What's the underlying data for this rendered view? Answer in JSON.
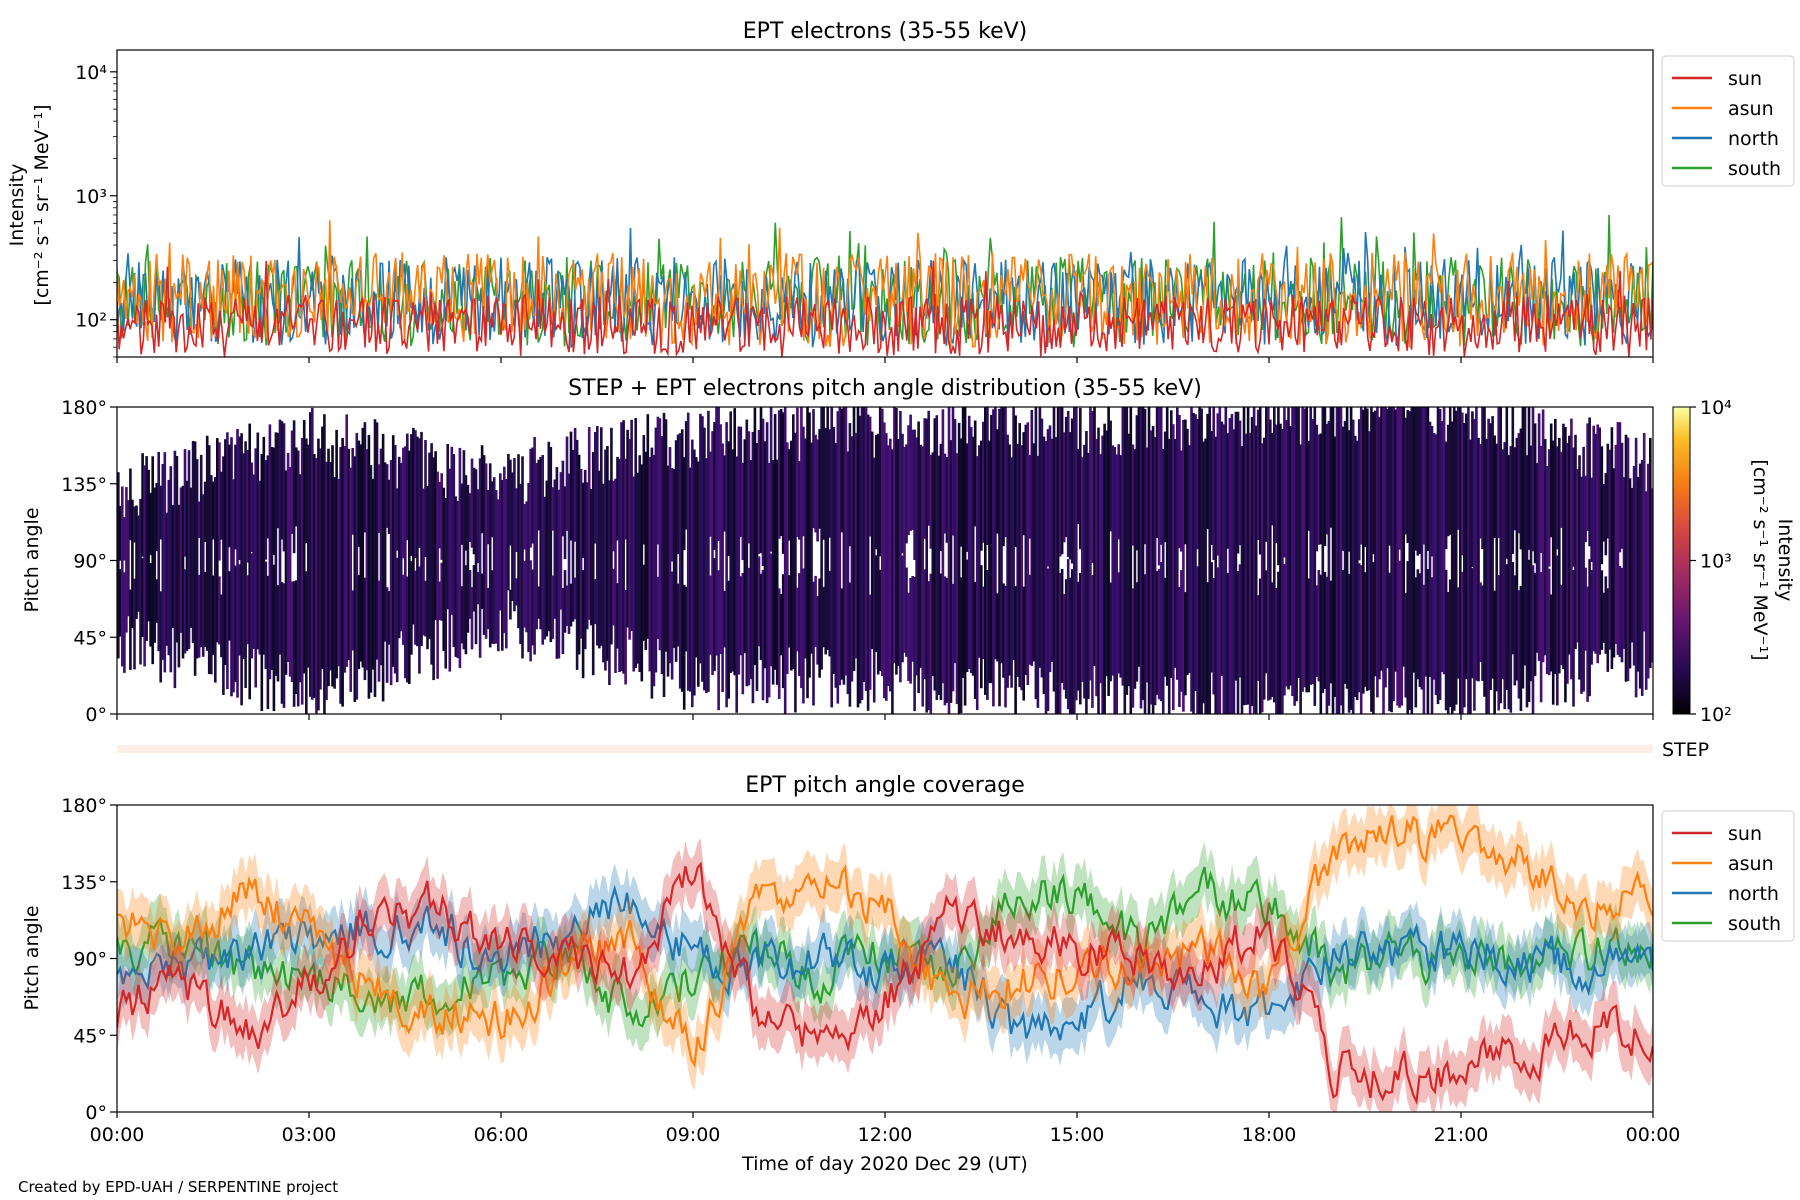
{
  "figure": {
    "credit": "Created by EPD-UAH / SERPENTINE project",
    "xlabel": "Time of day 2020 Dec 29 (UT)",
    "x_tick_labels": [
      "00:00",
      "03:00",
      "06:00",
      "09:00",
      "12:00",
      "15:00",
      "18:00",
      "21:00",
      "00:00"
    ],
    "step_label": "STEP"
  },
  "chart_data": [
    {
      "type": "line",
      "title": "EPT electrons (35-55 keV)",
      "ylabel_line1": "Intensity",
      "ylabel_line2": "[cm⁻² s⁻¹ sr⁻¹ MeV⁻¹]",
      "yscale": "log",
      "ylim": [
        50,
        15000
      ],
      "y_tick_labels": [
        "10²",
        "10³",
        "10⁴"
      ],
      "xlim_hours": [
        0,
        24
      ],
      "legend_position": "outside-right-top",
      "series": [
        {
          "name": "sun",
          "color": "#d62728",
          "typical": [
            50,
            160
          ],
          "peak": 300
        },
        {
          "name": "asun",
          "color": "#ff7f0e",
          "typical": [
            60,
            350
          ],
          "peak": 680
        },
        {
          "name": "north",
          "color": "#1f77b4",
          "typical": [
            60,
            320
          ],
          "peak": 560
        },
        {
          "name": "south",
          "color": "#2ca02c",
          "typical": [
            60,
            320
          ],
          "peak": 700
        }
      ]
    },
    {
      "type": "heatmap",
      "title": "STEP + EPT electrons pitch angle distribution (35-55 keV)",
      "ylabel": "Pitch angle",
      "y_tick_labels": [
        "0°",
        "45°",
        "90°",
        "135°",
        "180°"
      ],
      "ylim": [
        0,
        180
      ],
      "colorbar": {
        "label_line1": "Intensity",
        "label_line2": "[cm⁻² s⁻¹ sr⁻¹ MeV⁻¹]",
        "scale": "log",
        "range": [
          100,
          10000
        ],
        "tick_labels": [
          "10²",
          "10³",
          "10⁴"
        ],
        "colormap": "inferno"
      },
      "coverage_hours": [
        0,
        3,
        6,
        9,
        12,
        15,
        18,
        21,
        24
      ],
      "coverage_lower_deg": [
        45,
        10,
        55,
        20,
        20,
        10,
        5,
        10,
        30
      ],
      "coverage_upper_deg": [
        130,
        160,
        140,
        165,
        170,
        170,
        175,
        180,
        145
      ]
    },
    {
      "type": "line",
      "title": "EPT pitch angle coverage",
      "ylabel": "Pitch angle",
      "y_tick_labels": [
        "0°",
        "45°",
        "90°",
        "135°",
        "180°"
      ],
      "ylim": [
        0,
        180
      ],
      "xlim_hours": [
        0,
        24
      ],
      "legend_position": "outside-right-top",
      "x_hours": [
        0,
        1,
        2,
        3,
        4,
        5,
        6,
        7,
        8,
        9,
        10,
        11,
        12,
        13,
        14,
        15,
        16,
        17,
        18,
        19,
        20,
        21,
        22,
        23,
        24
      ],
      "series": [
        {
          "name": "sun",
          "color": "#d62728",
          "values": [
            60,
            75,
            45,
            75,
            115,
            120,
            95,
            95,
            80,
            140,
            60,
            40,
            65,
            115,
            105,
            95,
            90,
            85,
            110,
            25,
            20,
            25,
            35,
            50,
            45
          ]
        },
        {
          "name": "asun",
          "color": "#ff7f0e",
          "values": [
            115,
            100,
            130,
            105,
            70,
            60,
            55,
            85,
            100,
            35,
            120,
            140,
            120,
            65,
            75,
            85,
            90,
            95,
            70,
            155,
            160,
            160,
            145,
            120,
            130
          ]
        },
        {
          "name": "north",
          "color": "#1f77b4",
          "values": [
            80,
            80,
            95,
            100,
            110,
            105,
            90,
            100,
            125,
            95,
            85,
            90,
            85,
            95,
            45,
            50,
            80,
            60,
            55,
            95,
            90,
            95,
            90,
            85,
            80
          ]
        },
        {
          "name": "south",
          "color": "#2ca02c",
          "values": [
            100,
            95,
            85,
            80,
            65,
            70,
            75,
            95,
            55,
            80,
            95,
            80,
            95,
            75,
            130,
            130,
            95,
            125,
            125,
            85,
            90,
            85,
            90,
            95,
            100
          ]
        }
      ],
      "band_halfwidth_deg": 15
    }
  ]
}
